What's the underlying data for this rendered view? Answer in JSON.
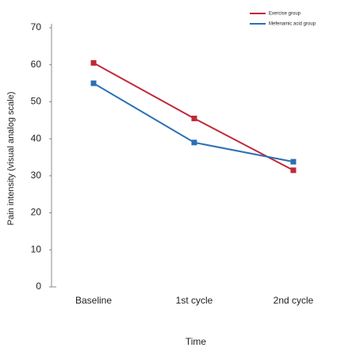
{
  "chart_data": {
    "type": "line",
    "x_label": "Time",
    "y_label": "Pain intensity (visual analog scale)",
    "categories": [
      "Baseline",
      "1st cycle",
      "2nd cycle"
    ],
    "series": [
      {
        "name": "Exercise group",
        "color": "#c0283a",
        "values": [
          60.5,
          45.5,
          31.5
        ]
      },
      {
        "name": "Mefenamic acid group",
        "color": "#2a6fb5",
        "values": [
          55,
          39,
          33.8
        ]
      }
    ],
    "ylim": [
      0,
      70
    ],
    "yticks": [
      0,
      10,
      20,
      30,
      40,
      50,
      60,
      70
    ],
    "grid": false,
    "legend": "top-right"
  }
}
